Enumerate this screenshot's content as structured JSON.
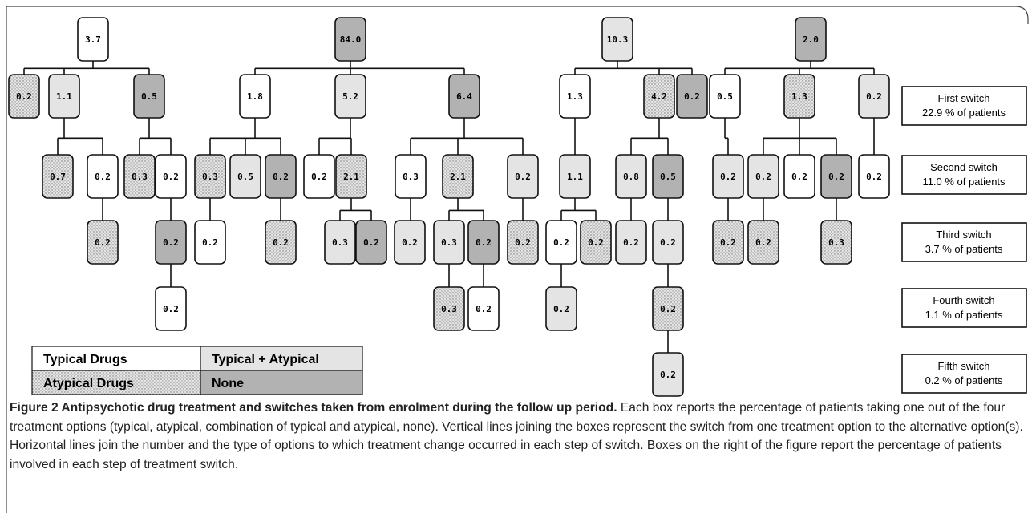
{
  "trees": [
    {
      "label": "3.7",
      "kind": 0,
      "children": [
        {
          "label": "0.2",
          "kind": 2
        },
        {
          "label": "1.1",
          "kind": 1,
          "children": [
            {
              "label": "0.7",
              "kind": 2
            },
            {
              "label": "0.2",
              "kind": 0,
              "children": [
                {
                  "label": "0.2",
                  "kind": 2
                }
              ]
            }
          ]
        },
        {
          "label": "0.5",
          "kind": 3,
          "children": [
            {
              "label": "0.3",
              "kind": 2
            },
            {
              "label": "0.2",
              "kind": 0,
              "children": [
                {
                  "label": "0.2",
                  "kind": 3,
                  "children": [
                    {
                      "label": "0.2",
                      "kind": 0
                    }
                  ]
                }
              ]
            }
          ]
        }
      ]
    },
    {
      "label": "84.0",
      "kind": 3,
      "children": [
        {
          "label": "1.8",
          "kind": 0,
          "children": [
            {
              "label": "0.3",
              "kind": 2,
              "children": [
                {
                  "label": "0.2",
                  "kind": 0
                }
              ]
            },
            {
              "label": "0.5",
              "kind": 1
            },
            {
              "label": "0.2",
              "kind": 3,
              "children": [
                {
                  "label": "0.2",
                  "kind": 2
                }
              ]
            }
          ]
        },
        {
          "label": "5.2",
          "kind": 1,
          "children": [
            {
              "label": "0.2",
              "kind": 0
            },
            {
              "label": "2.1",
              "kind": 2,
              "children": [
                {
                  "label": "0.3",
                  "kind": 1
                },
                {
                  "label": "0.2",
                  "kind": 3
                }
              ]
            }
          ]
        },
        {
          "label": "6.4",
          "kind": 3,
          "children": [
            {
              "label": "0.3",
              "kind": 0,
              "children": [
                {
                  "label": "0.2",
                  "kind": 1
                }
              ]
            },
            {
              "label": "2.1",
              "kind": 2,
              "children": [
                {
                  "label": "0.3",
                  "kind": 1,
                  "children": [
                    {
                      "label": "0.3",
                      "kind": 2
                    }
                  ]
                },
                {
                  "label": "0.2",
                  "kind": 3,
                  "children": [
                    {
                      "label": "0.2",
                      "kind": 0
                    }
                  ]
                }
              ]
            },
            {
              "label": "0.2",
              "kind": 1,
              "children": [
                {
                  "label": "0.2",
                  "kind": 2
                }
              ]
            }
          ]
        }
      ]
    },
    {
      "label": "10.3",
      "kind": 1,
      "children": [
        {
          "label": "1.3",
          "kind": 0,
          "children": [
            {
              "label": "1.1",
              "kind": 1,
              "children": [
                {
                  "label": "0.2",
                  "kind": 0,
                  "children": [
                    {
                      "label": "0.2",
                      "kind": 1
                    }
                  ]
                },
                {
                  "label": "0.2",
                  "kind": 2
                }
              ]
            }
          ]
        },
        {
          "label": "4.2",
          "kind": 2,
          "children": [
            {
              "label": "0.8",
              "kind": 1,
              "children": [
                {
                  "label": "0.2",
                  "kind": 1
                }
              ]
            },
            {
              "label": "0.5",
              "kind": 3,
              "children": [
                {
                  "label": "0.2",
                  "kind": 1,
                  "children": [
                    {
                      "label": "0.2",
                      "kind": 2,
                      "children": [
                        {
                          "label": "0.2",
                          "kind": 1
                        }
                      ]
                    }
                  ]
                }
              ]
            }
          ]
        },
        {
          "label": "0.2",
          "kind": 3
        }
      ]
    },
    {
      "label": "2.0",
      "kind": 3,
      "children": [
        {
          "label": "0.5",
          "kind": 0,
          "children": [
            {
              "label": "0.2",
              "kind": 1,
              "children": [
                {
                  "label": "0.2",
                  "kind": 2
                }
              ]
            }
          ]
        },
        {
          "label": "1.3",
          "kind": 2,
          "children": [
            {
              "label": "0.2",
              "kind": 1,
              "children": [
                {
                  "label": "0.2",
                  "kind": 2
                }
              ]
            },
            {
              "label": "0.2",
              "kind": 0
            },
            {
              "label": "0.2",
              "kind": 3,
              "children": [
                {
                  "label": "0.3",
                  "kind": 2
                }
              ]
            }
          ]
        },
        {
          "label": "0.2",
          "kind": 1,
          "children": [
            {
              "label": "0.2",
              "kind": 0
            }
          ]
        }
      ]
    }
  ],
  "legend": [
    {
      "label": "Typical Drugs",
      "color": "#ffffff"
    },
    {
      "label": "Typical + Atypical",
      "color": "#e4e4e4"
    },
    {
      "label": "Atypical Drugs",
      "color": "#e2e2e2",
      "pattern": "dots"
    },
    {
      "label": "None",
      "color": "#b2b2b2"
    }
  ],
  "switches": [
    {
      "name": "First switch",
      "share": "22.9 % of patients"
    },
    {
      "name": "Second switch",
      "share": "11.0 % of patients"
    },
    {
      "name": "Third switch",
      "share": "3.7 % of patients"
    },
    {
      "name": "Fourth switch",
      "share": "1.1 % of patients"
    },
    {
      "name": "Fifth switch",
      "share": "0.2 % of patients"
    }
  ],
  "caption": {
    "title": "Figure 2 Antipsychotic drug treatment and switches taken from enrolment during the follow up period.",
    "text": "Each box reports the percentage of patients taking one out of the four treatment options (typical, atypical, combination of typical and atypical, none). Vertical lines joining the boxes represent the switch from one treatment option to the alternative option(s). Horizontal lines join the number and the type of options to which treatment change occurred in each step of switch. Boxes on the right of the figure report the percentage of patients involved in each step of treatment switch."
  }
}
